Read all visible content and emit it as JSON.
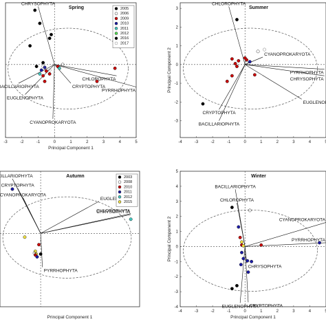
{
  "chart_data": [
    {
      "type": "scatter",
      "title": "Spring",
      "xlabel": "Principal Component 1",
      "ylabel": "",
      "xlim": [
        -3,
        5
      ],
      "ylim": [
        -3.9,
        3.3
      ],
      "xticks": [
        -3,
        -2,
        -1,
        0,
        1,
        2,
        3,
        4,
        5
      ],
      "yticks": [],
      "grid": false,
      "legend_position": "top-right",
      "legend": [
        {
          "name": "2005",
          "color": "#000000",
          "filled": true
        },
        {
          "name": "2006",
          "color": "#ffffff",
          "filled": false
        },
        {
          "name": "2009",
          "color": "#cc0000",
          "filled": true
        },
        {
          "name": "2010",
          "color": "#1a1aa6",
          "filled": true
        },
        {
          "name": "2011",
          "color": "#44c8c0",
          "filled": true
        },
        {
          "name": "2012",
          "color": "#55e055",
          "filled": true
        },
        {
          "name": "2016",
          "color": "#000000",
          "filled": true
        },
        {
          "name": "2017",
          "color": "#f0e040",
          "filled": false
        }
      ],
      "vectors": [
        {
          "label": "CHRYSOPHYTA",
          "x": -1.0,
          "y": 3.1
        },
        {
          "label": "CHLOROPHYTA",
          "x": 3.8,
          "y": -0.6
        },
        {
          "label": "PYRRHOPHYTA",
          "x": 5.0,
          "y": -1.2
        },
        {
          "label": "CRYPTOPHYTA",
          "x": 1.0,
          "y": -1.0
        },
        {
          "label": "BACILLARIOPHYTA",
          "x": -2.2,
          "y": -1.0
        },
        {
          "label": "EUGLENOPHYTA",
          "x": -1.8,
          "y": -1.6
        },
        {
          "label": "CYANOPROKARYOTA",
          "x": -0.1,
          "y": -2.9
        }
      ],
      "points": [
        {
          "x": -1.2,
          "y": 2.9,
          "series": "2005"
        },
        {
          "x": -0.9,
          "y": 2.2,
          "series": "2005"
        },
        {
          "x": -0.3,
          "y": 1.4,
          "series": "2005"
        },
        {
          "x": -0.2,
          "y": 1.6,
          "series": "2005"
        },
        {
          "x": -1.5,
          "y": 1.0,
          "series": "2005"
        },
        {
          "x": -0.7,
          "y": 0.1,
          "series": "2016"
        },
        {
          "x": -1.1,
          "y": -0.1,
          "series": "2016"
        },
        {
          "x": -0.5,
          "y": -0.35,
          "series": "2009"
        },
        {
          "x": -0.3,
          "y": -0.5,
          "series": "2009"
        },
        {
          "x": 0.2,
          "y": -0.1,
          "series": "2009"
        },
        {
          "x": 3.7,
          "y": -0.2,
          "series": "2009"
        },
        {
          "x": 2.6,
          "y": -0.9,
          "series": "2009"
        },
        {
          "x": -0.7,
          "y": -0.6,
          "series": "2010"
        },
        {
          "x": -0.6,
          "y": -0.9,
          "series": "2010"
        },
        {
          "x": -0.8,
          "y": -0.3,
          "series": "2011"
        },
        {
          "x": -0.6,
          "y": -0.15,
          "series": "2011"
        },
        {
          "x": 0.3,
          "y": -0.2,
          "series": "2012"
        },
        {
          "x": -0.9,
          "y": -0.5,
          "series": "2012"
        },
        {
          "x": 0.5,
          "y": 0.0,
          "series": "2006"
        },
        {
          "x": -0.7,
          "y": -0.1,
          "series": "2017"
        },
        {
          "x": -0.3,
          "y": -0.3,
          "series": "2017"
        }
      ]
    },
    {
      "type": "scatter",
      "title": "Summer",
      "xlabel": "",
      "ylabel": "Principal Component 2",
      "xlim": [
        -4,
        5
      ],
      "ylim": [
        -3.9,
        3.3
      ],
      "xticks": [
        -4,
        -3,
        -2,
        -1,
        0,
        1,
        2,
        3,
        4,
        5
      ],
      "yticks": [
        -3,
        -2,
        -1,
        0,
        1,
        2,
        3
      ],
      "grid": false,
      "vectors": [
        {
          "label": "CHLOROPHYTA",
          "x": -1.0,
          "y": 3.1
        },
        {
          "label": "CYANOPROKARYOTA",
          "x": 1.1,
          "y": 0.4
        },
        {
          "label": "PYRRHOPHYTA",
          "x": 4.9,
          "y": -0.25
        },
        {
          "label": "CHRYSOPHYTA",
          "x": 4.9,
          "y": -0.6
        },
        {
          "label": "EUGLENOPHYTA",
          "x": 3.5,
          "y": -1.85
        },
        {
          "label": "CRYPTOPHYTA",
          "x": -1.6,
          "y": -2.4
        },
        {
          "label": "BACILLARIOPHYTA",
          "x": -1.6,
          "y": -3.0
        }
      ],
      "points": [
        {
          "x": -0.5,
          "y": 2.4,
          "series": "2005"
        },
        {
          "x": 0.8,
          "y": 0.7,
          "series": "2006"
        },
        {
          "x": 1.2,
          "y": 0.8,
          "series": "2017"
        },
        {
          "x": -0.8,
          "y": 0.3,
          "series": "2009"
        },
        {
          "x": -0.4,
          "y": 0.2,
          "series": "2009"
        },
        {
          "x": 0.0,
          "y": 0.35,
          "series": "2009"
        },
        {
          "x": 0.1,
          "y": 0.25,
          "series": "2009"
        },
        {
          "x": -0.6,
          "y": 0.05,
          "series": "2010"
        },
        {
          "x": -0.5,
          "y": -0.1,
          "series": "2010"
        },
        {
          "x": 0.1,
          "y": 0.1,
          "series": "2006"
        },
        {
          "x": 0.3,
          "y": 0.15,
          "series": "2011"
        },
        {
          "x": -0.8,
          "y": -0.6,
          "series": "2009"
        },
        {
          "x": -1.1,
          "y": -0.9,
          "series": "2009"
        },
        {
          "x": 0.6,
          "y": -0.55,
          "series": "2009"
        },
        {
          "x": -2.6,
          "y": -2.1,
          "series": "2005"
        }
      ]
    },
    {
      "type": "scatter",
      "title": "Autumn",
      "xlabel": "Principal Component 1",
      "ylabel": "",
      "xlim": [
        -2.3,
        5.6
      ],
      "ylim": [
        -3.9,
        3.3
      ],
      "xticks": [],
      "yticks": [],
      "grid": false,
      "legend_position": "top-right",
      "legend": [
        {
          "name": "2003",
          "color": "#000000",
          "filled": true
        },
        {
          "name": "2008",
          "color": "#ffffff",
          "filled": false
        },
        {
          "name": "2010",
          "color": "#cc0000",
          "filled": true
        },
        {
          "name": "2011",
          "color": "#1a1aa6",
          "filled": true
        },
        {
          "name": "2012",
          "color": "#44c8c0",
          "filled": true
        },
        {
          "name": "2015",
          "color": "#f0e040",
          "filled": true
        }
      ],
      "vectors": [
        {
          "label": "BACILLARIOPHYTA",
          "x": -1.6,
          "y": 2.9
        },
        {
          "label": "CRYPTOPHYTA",
          "x": -1.3,
          "y": 2.4
        },
        {
          "label": "CYANOPROKARYOTA",
          "x": -1.0,
          "y": 1.9
        },
        {
          "label": "EUGLENOPHYTA",
          "x": 3.3,
          "y": 1.7
        },
        {
          "label": "CHLOROPHYTA",
          "x": 5.1,
          "y": 1.05
        },
        {
          "label": "CHRYSOPHYTA",
          "x": 5.1,
          "y": 1.0
        },
        {
          "label": "PYRRHOPHYTA",
          "x": 0.1,
          "y": -1.8
        }
      ],
      "points": [
        {
          "x": -1.6,
          "y": 2.35,
          "series": "2011"
        },
        {
          "x": 5.1,
          "y": 0.75,
          "series": "2012"
        },
        {
          "x": -0.9,
          "y": -0.2,
          "series": "2015"
        },
        {
          "x": -0.3,
          "y": -0.95,
          "series": "2015"
        },
        {
          "x": -0.25,
          "y": -1.1,
          "series": "2015"
        },
        {
          "x": -0.3,
          "y": -1.15,
          "series": "2010"
        },
        {
          "x": -0.35,
          "y": -1.05,
          "series": "2008"
        },
        {
          "x": 0.0,
          "y": -1.1,
          "series": "2003"
        },
        {
          "x": -0.2,
          "y": -1.25,
          "series": "2011"
        },
        {
          "x": -0.1,
          "y": -0.6,
          "series": "2010"
        }
      ]
    },
    {
      "type": "scatter",
      "title": "Winter",
      "xlabel": "Principal Component 1",
      "ylabel": "Principal Component 2",
      "xlim": [
        -4,
        5
      ],
      "ylim": [
        -4,
        5
      ],
      "xticks": [
        -4,
        -3,
        -2,
        -1,
        0,
        1,
        2,
        3,
        4,
        5
      ],
      "yticks": [
        -4,
        -3,
        -2,
        -1,
        0,
        1,
        2,
        3,
        4,
        5
      ],
      "grid": false,
      "vectors": [
        {
          "label": "BACILLARIOPHYTA",
          "x": -0.6,
          "y": 3.8
        },
        {
          "label": "CHLOROPHYTA",
          "x": -0.5,
          "y": 2.9
        },
        {
          "label": "CYANOPROKARYOTA",
          "x": 5.0,
          "y": 1.6
        },
        {
          "label": "PYRRHOPHYTA",
          "x": 5.0,
          "y": 0.25
        },
        {
          "label": "CHRYSOPHYTA",
          "x": 0.1,
          "y": -1.1
        },
        {
          "label": "EUGLENOPHYTA",
          "x": -0.3,
          "y": -3.75
        },
        {
          "label": "CRYPTOPHYTA",
          "x": 0.2,
          "y": -3.7
        }
      ],
      "points": [
        {
          "x": -0.8,
          "y": 2.6,
          "series": "2003"
        },
        {
          "x": 0.3,
          "y": 2.4,
          "series": "2008"
        },
        {
          "x": -0.4,
          "y": 1.3,
          "series": "2011"
        },
        {
          "x": -0.3,
          "y": 0.6,
          "series": "2010"
        },
        {
          "x": -0.2,
          "y": 0.3,
          "series": "2015"
        },
        {
          "x": -0.2,
          "y": 0.1,
          "series": "2010"
        },
        {
          "x": -0.1,
          "y": 0.05,
          "series": "2015"
        },
        {
          "x": 1.0,
          "y": 0.1,
          "series": "2010"
        },
        {
          "x": 4.6,
          "y": 0.25,
          "series": "2011"
        },
        {
          "x": -0.2,
          "y": -0.4,
          "series": "2011"
        },
        {
          "x": -0.1,
          "y": -0.8,
          "series": "2011"
        },
        {
          "x": 0.15,
          "y": -0.95,
          "series": "2011"
        },
        {
          "x": 0.4,
          "y": -1.0,
          "series": "2011"
        },
        {
          "x": -0.25,
          "y": -1.2,
          "series": "2011"
        },
        {
          "x": 0.2,
          "y": -1.7,
          "series": "2011"
        },
        {
          "x": -0.5,
          "y": -2.6,
          "series": "2003"
        },
        {
          "x": -0.8,
          "y": -2.8,
          "series": "2003"
        }
      ]
    }
  ]
}
